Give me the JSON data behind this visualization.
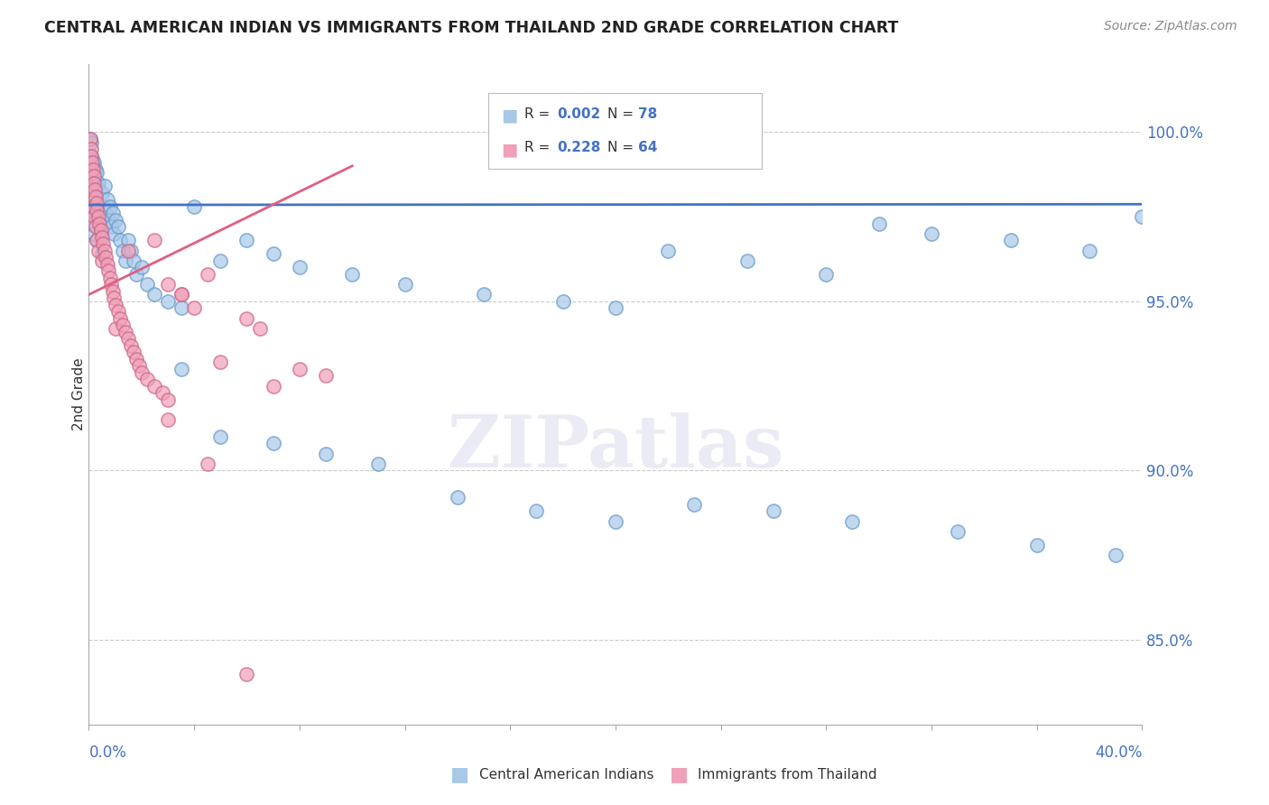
{
  "title": "CENTRAL AMERICAN INDIAN VS IMMIGRANTS FROM THAILAND 2ND GRADE CORRELATION CHART",
  "source": "Source: ZipAtlas.com",
  "ylabel": "2nd Grade",
  "ytick_values": [
    85.0,
    90.0,
    95.0,
    100.0
  ],
  "xlim": [
    0.0,
    40.0
  ],
  "ylim": [
    82.5,
    102.0
  ],
  "blue_color": "#A8C8E8",
  "pink_color": "#F0A0B8",
  "blue_edge_color": "#6699CC",
  "pink_edge_color": "#CC6688",
  "blue_line_color": "#4472C4",
  "pink_line_color": "#E06080",
  "axis_label_color": "#4472C4",
  "grid_color": "#CCCCCC",
  "title_color": "#222222",
  "source_color": "#888888",
  "watermark_color": "#EBEBF5",
  "bg_color": "#FFFFFF",
  "blue_scatter_x": [
    0.05,
    0.08,
    0.1,
    0.1,
    0.12,
    0.15,
    0.15,
    0.18,
    0.2,
    0.22,
    0.25,
    0.28,
    0.3,
    0.3,
    0.35,
    0.4,
    0.45,
    0.5,
    0.55,
    0.6,
    0.65,
    0.7,
    0.75,
    0.8,
    0.85,
    0.9,
    0.95,
    1.0,
    1.1,
    1.2,
    1.3,
    1.4,
    1.5,
    1.6,
    1.7,
    1.8,
    2.0,
    2.2,
    2.5,
    3.0,
    3.5,
    4.0,
    5.0,
    6.0,
    7.0,
    8.0,
    10.0,
    12.0,
    15.0,
    18.0,
    20.0,
    22.0,
    25.0,
    28.0,
    30.0,
    32.0,
    35.0,
    38.0,
    40.0,
    3.5,
    5.0,
    7.0,
    9.0,
    11.0,
    14.0,
    17.0,
    20.0,
    23.0,
    26.0,
    29.0,
    33.0,
    36.0,
    39.0,
    0.05,
    0.1,
    0.2,
    0.3,
    0.5
  ],
  "blue_scatter_y": [
    99.8,
    99.3,
    99.7,
    98.5,
    99.2,
    99.0,
    97.8,
    98.8,
    99.1,
    98.6,
    98.9,
    98.4,
    98.8,
    97.5,
    98.5,
    97.2,
    97.0,
    98.2,
    97.8,
    98.4,
    97.6,
    98.0,
    97.4,
    97.8,
    97.2,
    97.6,
    97.0,
    97.4,
    97.2,
    96.8,
    96.5,
    96.2,
    96.8,
    96.5,
    96.2,
    95.8,
    96.0,
    95.5,
    95.2,
    95.0,
    94.8,
    97.8,
    96.2,
    96.8,
    96.4,
    96.0,
    95.8,
    95.5,
    95.2,
    95.0,
    94.8,
    96.5,
    96.2,
    95.8,
    97.3,
    97.0,
    96.8,
    96.5,
    97.5,
    93.0,
    91.0,
    90.8,
    90.5,
    90.2,
    89.2,
    88.8,
    88.5,
    89.0,
    88.8,
    88.5,
    88.2,
    87.8,
    87.5,
    97.6,
    97.3,
    97.0,
    96.8,
    96.4
  ],
  "pink_scatter_x": [
    0.05,
    0.05,
    0.08,
    0.1,
    0.1,
    0.12,
    0.15,
    0.15,
    0.18,
    0.2,
    0.2,
    0.22,
    0.25,
    0.25,
    0.28,
    0.3,
    0.3,
    0.35,
    0.35,
    0.4,
    0.45,
    0.5,
    0.5,
    0.55,
    0.6,
    0.65,
    0.7,
    0.75,
    0.8,
    0.85,
    0.9,
    0.95,
    1.0,
    1.0,
    1.1,
    1.2,
    1.3,
    1.4,
    1.5,
    1.6,
    1.7,
    1.8,
    1.9,
    2.0,
    2.2,
    2.5,
    2.8,
    3.0,
    3.0,
    3.5,
    4.0,
    5.0,
    6.0,
    7.0,
    8.0,
    1.5,
    2.5,
    3.5,
    4.5,
    6.5,
    9.0,
    3.0,
    4.5,
    6.0
  ],
  "pink_scatter_y": [
    99.8,
    98.8,
    99.5,
    99.3,
    98.3,
    99.1,
    98.9,
    97.8,
    98.7,
    98.5,
    97.5,
    98.3,
    98.1,
    97.2,
    97.9,
    97.7,
    96.8,
    97.5,
    96.5,
    97.3,
    97.1,
    96.9,
    96.2,
    96.7,
    96.5,
    96.3,
    96.1,
    95.9,
    95.7,
    95.5,
    95.3,
    95.1,
    94.9,
    94.2,
    94.7,
    94.5,
    94.3,
    94.1,
    93.9,
    93.7,
    93.5,
    93.3,
    93.1,
    92.9,
    92.7,
    92.5,
    92.3,
    92.1,
    95.5,
    95.2,
    94.8,
    93.2,
    94.5,
    92.5,
    93.0,
    96.5,
    96.8,
    95.2,
    95.8,
    94.2,
    92.8,
    91.5,
    90.2,
    84.0
  ],
  "blue_trendline_x": [
    0.0,
    40.0
  ],
  "blue_trendline_y": [
    97.85,
    97.87
  ],
  "pink_trendline_x": [
    0.0,
    10.0
  ],
  "pink_trendline_y": [
    95.2,
    99.0
  ]
}
